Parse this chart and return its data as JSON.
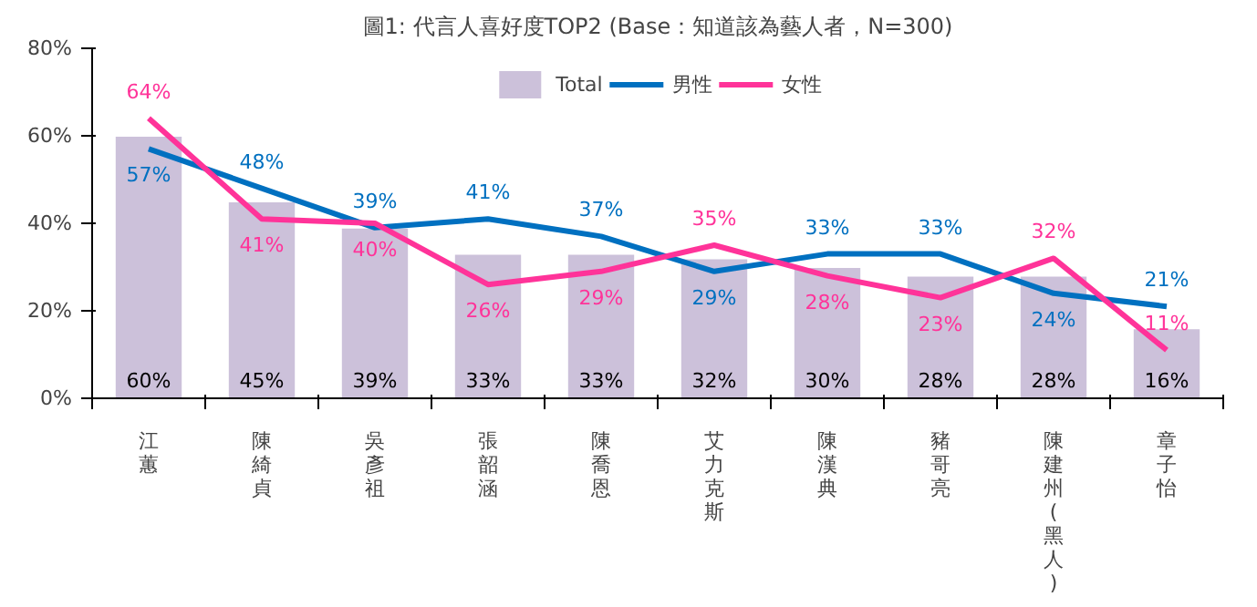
{
  "chart_data": {
    "type": "bar",
    "title": "圖1: 代言人喜好度TOP2 (Base：知道該為藝人者，N=300)",
    "categories": [
      "江蕙",
      "陳綺貞",
      "吳彥祖",
      "張韶涵",
      "陳喬恩",
      "艾力克斯",
      "陳漢典",
      "豬哥亮",
      "陳建州(黑人)",
      "章子怡"
    ],
    "series": [
      {
        "name": "Total",
        "color": "#ccc1da",
        "values": [
          60,
          45,
          39,
          33,
          33,
          32,
          30,
          28,
          28,
          16
        ],
        "value_labels": [
          "60%",
          "45%",
          "39%",
          "33%",
          "33%",
          "32%",
          "30%",
          "28%",
          "28%",
          "16%"
        ]
      },
      {
        "name": "男性",
        "type": "line",
        "color": "#0070c0",
        "values": [
          57,
          48,
          39,
          41,
          37,
          29,
          33,
          33,
          24,
          21
        ],
        "value_labels": [
          "57%",
          "48%",
          "39%",
          "41%",
          "37%",
          "29%",
          "33%",
          "33%",
          "24%",
          "21%"
        ]
      },
      {
        "name": "女性",
        "type": "line",
        "color": "#ff3399",
        "values": [
          64,
          41,
          40,
          26,
          29,
          35,
          28,
          23,
          32,
          11
        ],
        "value_labels": [
          "64%",
          "41%",
          "40%",
          "26%",
          "29%",
          "35%",
          "28%",
          "23%",
          "32%",
          "11%"
        ]
      }
    ],
    "ylim": [
      0,
      80
    ],
    "yticks": [
      {
        "value": 0,
        "label": "0%"
      },
      {
        "value": 20,
        "label": "20%"
      },
      {
        "value": 40,
        "label": "40%"
      },
      {
        "value": 60,
        "label": "60%"
      },
      {
        "value": 80,
        "label": "80%"
      }
    ],
    "grid": false,
    "legend": "top",
    "marker": "none",
    "line_style": "solid"
  }
}
